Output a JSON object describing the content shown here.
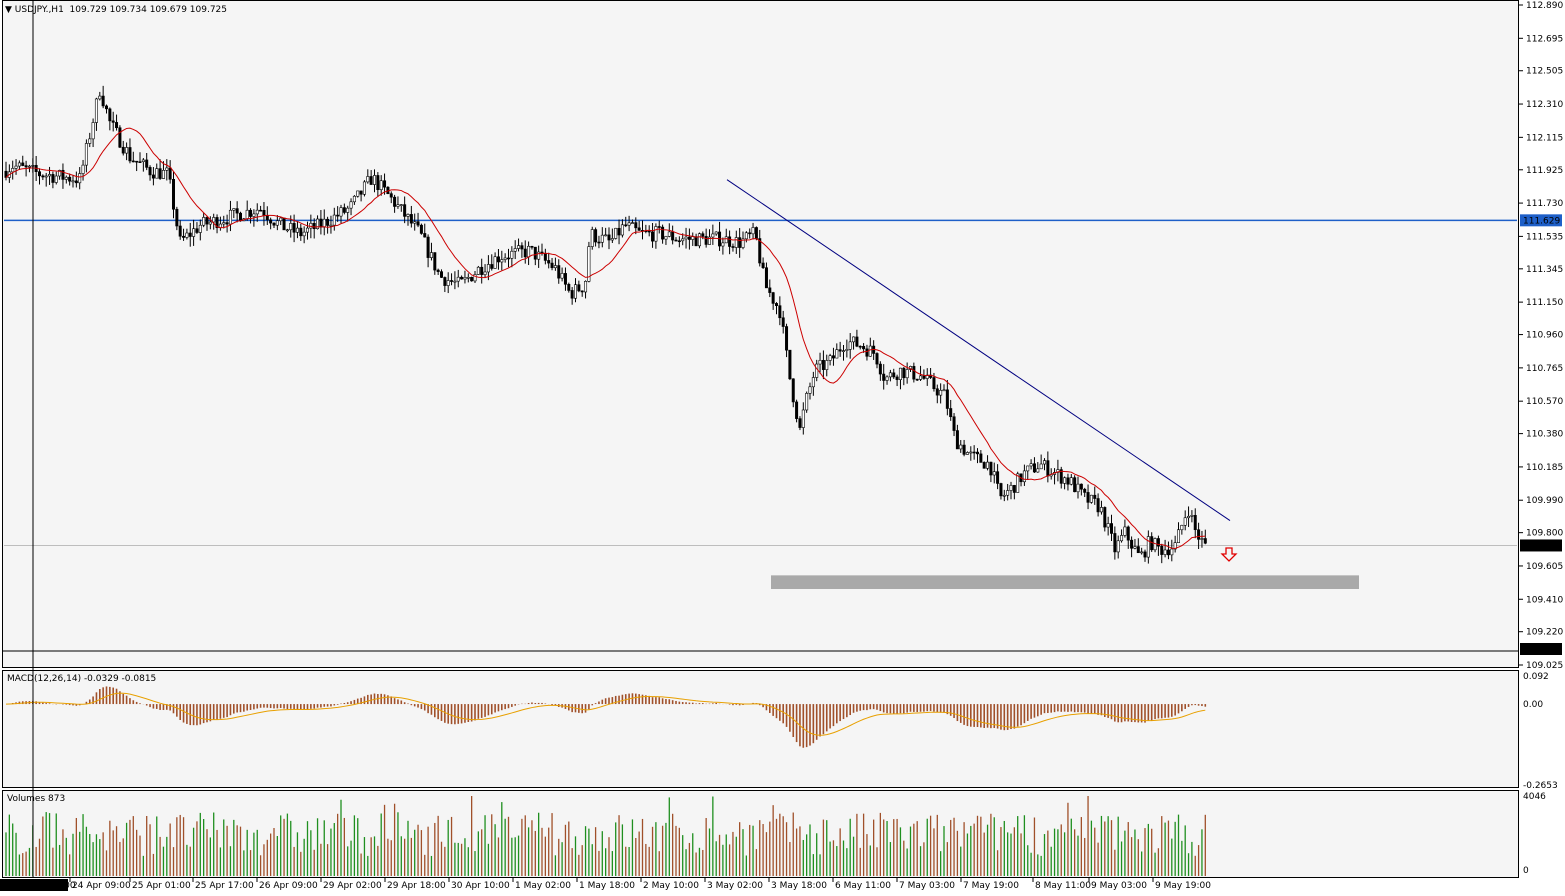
{
  "header": {
    "symbol": "USDJPY.,H1",
    "ohlc": "109.729 109.734 109.679 109.725"
  },
  "macd_header": "MACD(12,26,14) -0.0329 -0.0815",
  "volumes_header": "Volumes 873",
  "price_axis": [
    "112.890",
    "112.695",
    "112.505",
    "112.310",
    "112.115",
    "111.925",
    "111.730",
    "111.535",
    "111.345",
    "111.150",
    "110.960",
    "110.765",
    "110.570",
    "110.380",
    "110.185",
    "109.990",
    "109.800",
    "109.605",
    "109.410",
    "109.220",
    "109.025"
  ],
  "price_markers": {
    "level": "111.629",
    "current": "109.725",
    "low": "109.115"
  },
  "macd_axis": [
    "0.092",
    "0.00",
    "-0.2653"
  ],
  "volume_axis": [
    "4046",
    "0"
  ],
  "time_axis": [
    "2019.04.24 0:00",
    "24 Apr 09:00",
    "25 Apr 01:00",
    "25 Apr 17:00",
    "26 Apr 09:00",
    "29 Apr 02:00",
    "29 Apr 18:00",
    "30 Apr 10:00",
    "1 May 02:00",
    "1 May 18:00",
    "2 May 10:00",
    "3 May 02:00",
    "3 May 18:00",
    "6 May 11:00",
    "7 May 03:00",
    "7 May 19:00",
    "8 May 11:00",
    "9 May 03:00",
    "9 May 19:00"
  ],
  "colors": {
    "up": "#1f8f1f",
    "down": "#a0502a",
    "ma": "#cc0000",
    "trend": "#000080",
    "hline": "#1e5fc8",
    "macd_signal": "#e8a000",
    "zone": "#a9a9a9",
    "arrow": "#e00000"
  },
  "chart_data": [
    {
      "type": "candlestick",
      "title": "USDJPY.,H1",
      "ylim": [
        109.025,
        112.89
      ],
      "key_levels": {
        "resistance": 111.629,
        "current": 109.725,
        "support_zone": [
          109.47,
          109.55
        ]
      },
      "trendline": {
        "from": {
          "x": "3 May 02:00",
          "y": 111.75
        },
        "to": {
          "x": "10 May 02:00",
          "y": 109.9
        }
      },
      "path_points": [
        [
          0,
          111.9
        ],
        [
          12,
          111.95
        ],
        [
          40,
          111.9
        ],
        [
          80,
          111.87
        ],
        [
          100,
          112.4
        ],
        [
          110,
          112.2
        ],
        [
          130,
          112.0
        ],
        [
          150,
          111.92
        ],
        [
          168,
          111.9
        ],
        [
          180,
          111.5
        ],
        [
          200,
          111.6
        ],
        [
          230,
          111.65
        ],
        [
          260,
          111.7
        ],
        [
          280,
          111.6
        ],
        [
          300,
          111.55
        ],
        [
          320,
          111.6
        ],
        [
          350,
          111.7
        ],
        [
          372,
          111.88
        ],
        [
          395,
          111.73
        ],
        [
          420,
          111.55
        ],
        [
          440,
          111.3
        ],
        [
          460,
          111.25
        ],
        [
          480,
          111.35
        ],
        [
          500,
          111.42
        ],
        [
          530,
          111.45
        ],
        [
          555,
          111.35
        ],
        [
          570,
          111.2
        ],
        [
          585,
          111.25
        ],
        [
          590,
          111.55
        ],
        [
          610,
          111.5
        ],
        [
          625,
          111.6
        ],
        [
          640,
          111.55
        ],
        [
          660,
          111.55
        ],
        [
          680,
          111.52
        ],
        [
          700,
          111.52
        ],
        [
          720,
          111.52
        ],
        [
          740,
          111.5
        ],
        [
          755,
          111.55
        ],
        [
          765,
          111.25
        ],
        [
          780,
          111.1
        ],
        [
          790,
          110.7
        ],
        [
          800,
          110.4
        ],
        [
          805,
          110.55
        ],
        [
          815,
          110.75
        ],
        [
          830,
          110.8
        ],
        [
          845,
          110.92
        ],
        [
          860,
          110.9
        ],
        [
          875,
          110.85
        ],
        [
          885,
          110.7
        ],
        [
          900,
          110.75
        ],
        [
          920,
          110.72
        ],
        [
          945,
          110.6
        ],
        [
          955,
          110.35
        ],
        [
          970,
          110.25
        ],
        [
          990,
          110.2
        ],
        [
          1000,
          110.0
        ],
        [
          1010,
          110.05
        ],
        [
          1025,
          110.15
        ],
        [
          1040,
          110.2
        ],
        [
          1055,
          110.15
        ],
        [
          1070,
          110.1
        ],
        [
          1085,
          110.0
        ],
        [
          1100,
          109.95
        ],
        [
          1115,
          109.7
        ],
        [
          1125,
          109.8
        ],
        [
          1140,
          109.65
        ],
        [
          1150,
          109.75
        ],
        [
          1160,
          109.7
        ],
        [
          1175,
          109.72
        ],
        [
          1188,
          109.95
        ],
        [
          1196,
          109.8
        ],
        [
          1205,
          109.72
        ]
      ]
    },
    {
      "type": "bar",
      "title": "MACD(12,26,14)",
      "values_text": [
        "-0.0329",
        "-0.0815"
      ],
      "ylim": [
        -0.2653,
        0.092
      ]
    },
    {
      "type": "bar",
      "title": "Volumes",
      "last_value": 873,
      "ylim": [
        0,
        4046
      ]
    }
  ]
}
